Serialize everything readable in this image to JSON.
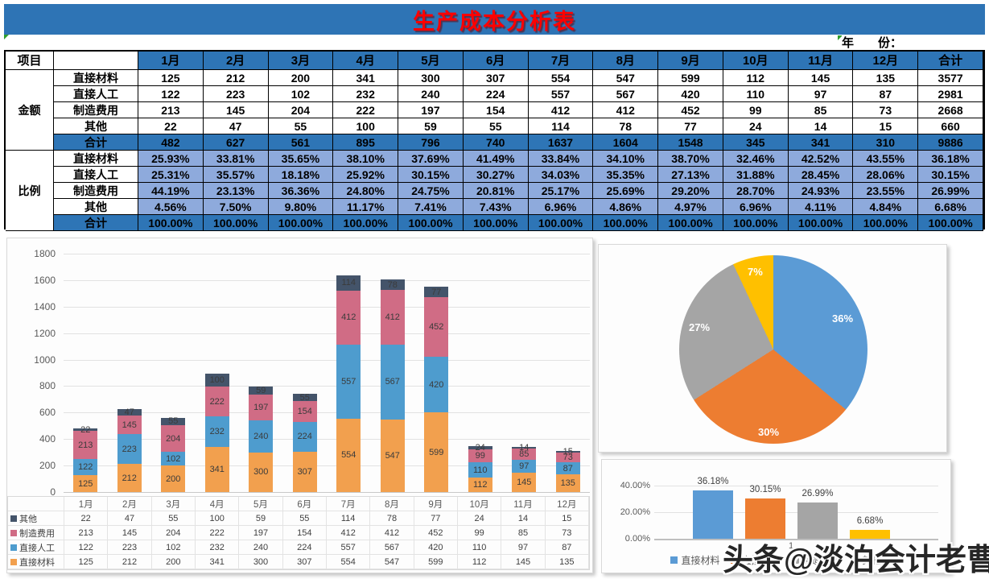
{
  "title": "生产成本分析表",
  "year_label": "年　　份：",
  "watermark": "头条@淡泊会计老曹",
  "colors": {
    "title_bar": "#2E74B5",
    "title_text": "#FF0000",
    "header_blue": "#2E75B6",
    "light_blue": "#8EAADC",
    "bar_orange": "#F2A04E",
    "bar_blue": "#4E9CCE",
    "bar_rose": "#D06C85",
    "bar_navy": "#44546A",
    "pie_blue": "#5B9BD5",
    "pie_orange": "#ED7D31",
    "pie_gray": "#A5A5A5",
    "pie_yellow": "#FFC000"
  },
  "table": {
    "item_header": "项目",
    "section_amount": "金额",
    "section_ratio": "比例",
    "total_col_label": "合计",
    "months": [
      "1月",
      "2月",
      "3月",
      "4月",
      "5月",
      "6月",
      "7月",
      "8月",
      "9月",
      "10月",
      "11月",
      "12月"
    ],
    "amount_rows": [
      {
        "label": "直接材料",
        "values": [
          125,
          212,
          200,
          341,
          300,
          307,
          554,
          547,
          599,
          112,
          145,
          135
        ],
        "total": 3577
      },
      {
        "label": "直接人工",
        "values": [
          122,
          223,
          102,
          232,
          240,
          224,
          557,
          567,
          420,
          110,
          97,
          87
        ],
        "total": 2981
      },
      {
        "label": "制造费用",
        "values": [
          213,
          145,
          204,
          222,
          197,
          154,
          412,
          412,
          452,
          99,
          85,
          73
        ],
        "total": 2668
      },
      {
        "label": "其他",
        "values": [
          22,
          47,
          55,
          100,
          59,
          55,
          114,
          78,
          77,
          24,
          14,
          15
        ],
        "total": 660
      }
    ],
    "amount_total": {
      "label": "合计",
      "values": [
        482,
        627,
        561,
        895,
        796,
        740,
        1637,
        1604,
        1548,
        345,
        341,
        310
      ],
      "total": 9886
    },
    "ratio_rows": [
      {
        "label": "直接材料",
        "values": [
          "25.93%",
          "33.81%",
          "35.65%",
          "38.10%",
          "37.69%",
          "41.49%",
          "33.84%",
          "34.10%",
          "38.70%",
          "32.46%",
          "42.52%",
          "43.55%"
        ],
        "total": "36.18%"
      },
      {
        "label": "直接人工",
        "values": [
          "25.31%",
          "35.57%",
          "18.18%",
          "25.92%",
          "30.15%",
          "30.27%",
          "34.03%",
          "35.35%",
          "27.13%",
          "31.88%",
          "28.45%",
          "28.06%"
        ],
        "total": "30.15%"
      },
      {
        "label": "制造费用",
        "values": [
          "44.19%",
          "23.13%",
          "36.36%",
          "24.80%",
          "24.75%",
          "20.81%",
          "25.17%",
          "25.69%",
          "29.20%",
          "28.70%",
          "24.93%",
          "23.55%"
        ],
        "total": "26.99%"
      },
      {
        "label": "其他",
        "values": [
          "4.56%",
          "7.50%",
          "9.80%",
          "11.17%",
          "7.41%",
          "7.43%",
          "6.96%",
          "4.86%",
          "4.97%",
          "6.96%",
          "4.11%",
          "4.84%"
        ],
        "total": "6.68%"
      }
    ],
    "ratio_total": {
      "label": "合计",
      "values": [
        "100.00%",
        "100.00%",
        "100.00%",
        "100.00%",
        "100.00%",
        "100.00%",
        "100.00%",
        "100.00%",
        "100.00%",
        "100.00%",
        "100.00%",
        "100.00%"
      ],
      "total": "100.00%"
    }
  },
  "chart_data": [
    {
      "type": "bar",
      "subtype": "stacked",
      "categories": [
        "1月",
        "2月",
        "3月",
        "4月",
        "5月",
        "6月",
        "7月",
        "8月",
        "9月",
        "10月",
        "11月",
        "12月"
      ],
      "series": [
        {
          "name": "直接材料",
          "color": "#F2A04E",
          "values": [
            125,
            212,
            200,
            341,
            300,
            307,
            554,
            547,
            599,
            112,
            145,
            135
          ]
        },
        {
          "name": "直接人工",
          "color": "#4E9CCE",
          "values": [
            122,
            223,
            102,
            232,
            240,
            224,
            557,
            567,
            420,
            110,
            97,
            87
          ]
        },
        {
          "name": "制造费用",
          "color": "#D06C85",
          "values": [
            213,
            145,
            204,
            222,
            197,
            154,
            412,
            412,
            452,
            99,
            85,
            73
          ]
        },
        {
          "name": "其他",
          "color": "#44546A",
          "values": [
            22,
            47,
            55,
            100,
            59,
            55,
            114,
            78,
            77,
            24,
            14,
            15
          ]
        }
      ],
      "ylim": [
        0,
        1800
      ],
      "ytick_step": 200,
      "grid": true,
      "data_labels": true,
      "legend_position": "bottom-data-table",
      "data_table_row_order": [
        "其他",
        "制造费用",
        "直接人工",
        "直接材料"
      ]
    },
    {
      "type": "pie",
      "start_angle_deg": 0,
      "direction": "clockwise",
      "slices": [
        {
          "name": "直接材料",
          "value_pct": 36,
          "label": "36%",
          "color": "#5B9BD5"
        },
        {
          "name": "直接人工",
          "value_pct": 30,
          "label": "30%",
          "color": "#ED7D31"
        },
        {
          "name": "制造费用",
          "value_pct": 27,
          "label": "27%",
          "color": "#A5A5A5"
        },
        {
          "name": "其他",
          "value_pct": 7,
          "label": "7%",
          "color": "#FFC000"
        }
      ],
      "legend_position": "none"
    },
    {
      "type": "bar",
      "categories": [
        "1"
      ],
      "series": [
        {
          "name": "直接材料",
          "color": "#5B9BD5",
          "value_pct": 36.18,
          "label": "36.18%"
        },
        {
          "name": "直接人工",
          "color": "#ED7D31",
          "value_pct": 30.15,
          "label": "30.15%"
        },
        {
          "name": "制造费用",
          "color": "#A5A5A5",
          "value_pct": 26.99,
          "label": "26.99%"
        },
        {
          "name": "其他",
          "color": "#FFC000",
          "value_pct": 6.68,
          "label": "6.68%"
        }
      ],
      "yticks": [
        "0.00%",
        "20.00%",
        "40.00%"
      ],
      "ylim": [
        0,
        45
      ],
      "grid": true,
      "legend_position": "bottom"
    }
  ]
}
